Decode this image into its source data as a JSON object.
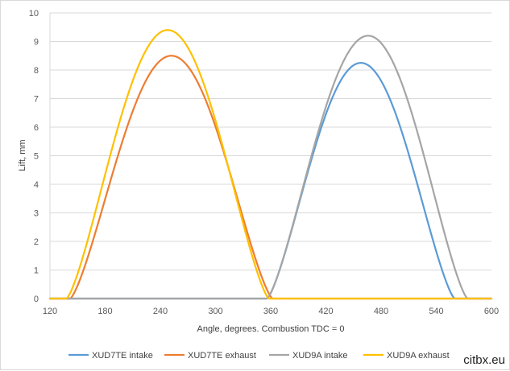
{
  "chart_data": {
    "type": "line",
    "xlabel": "Angle, degrees. Combustion TDC = 0",
    "ylabel": "Lift, mm",
    "xlim": [
      120,
      600
    ],
    "ylim": [
      0,
      10
    ],
    "xticks": [
      120,
      180,
      240,
      300,
      360,
      420,
      480,
      540,
      600
    ],
    "yticks": [
      0,
      1,
      2,
      3,
      4,
      5,
      6,
      7,
      8,
      9,
      10
    ],
    "grid": "horizontal",
    "legend_position": "bottom",
    "series": [
      {
        "name": "XUD7TE intake",
        "color": "#5b9bd5",
        "lobe": {
          "start": 356,
          "peak_angle": 458,
          "peak_lift": 8.25,
          "end": 560
        }
      },
      {
        "name": "XUD7TE exhaust",
        "color": "#ed7d31",
        "lobe": {
          "start": 142,
          "peak_angle": 252,
          "peak_lift": 8.5,
          "end": 362
        }
      },
      {
        "name": "XUD9A intake",
        "color": "#a5a5a5",
        "lobe": {
          "start": 356,
          "peak_angle": 466,
          "peak_lift": 9.2,
          "end": 574
        }
      },
      {
        "name": "XUD9A exhaust",
        "color": "#ffc000",
        "lobe": {
          "start": 138,
          "peak_angle": 248,
          "peak_lift": 9.4,
          "end": 358
        }
      }
    ]
  },
  "watermark": "citbx.eu"
}
